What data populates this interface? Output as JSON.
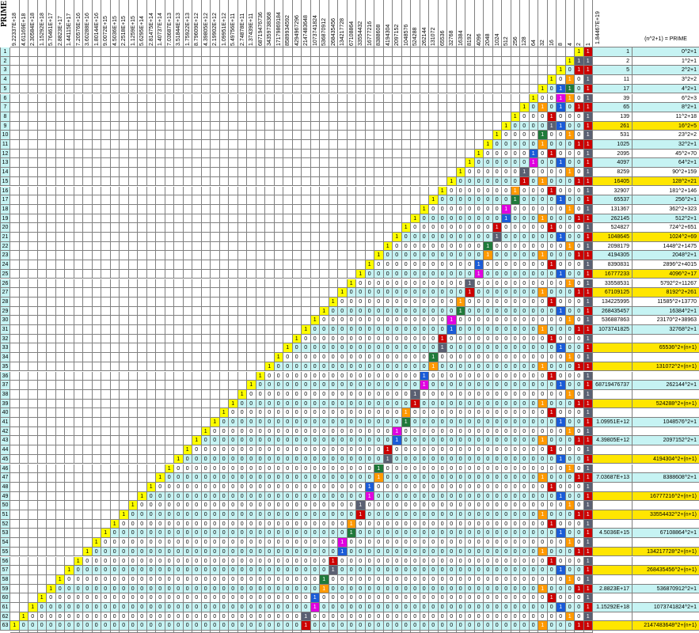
{
  "sheet": {
    "header_label": "PRIME",
    "col_header_label": "(n^2+1) = PRIME",
    "top_right_value": "1.84467E+19",
    "colors": {
      "grid_line": "#808080",
      "cyan_bg": "#c6f3f3",
      "light_bg": "#ffffff",
      "yellow": "#ffff00",
      "red": "#cc0000",
      "blue": "#1a5cd8",
      "green": "#1f7a3a",
      "magenta": "#e000e0",
      "orange": "#ff9900",
      "gray": "#5a6072",
      "highlight": "#ffe600"
    },
    "power_headers": [
      "9.22337E+18",
      "4.61169E+18",
      "2.30584E+18",
      "1.15292E+18",
      "5.76461E+17",
      "2.8823E+17",
      "1.44115E+17",
      "7.20576E+16",
      "3.60288E+16",
      "1.80144E+16",
      "9.0072E+15",
      "4.5036E+15",
      "2.2518E+15",
      "1.1259E+15",
      "5.6295E+14",
      "2.81475E+14",
      "1.40737E+14",
      "7.03687E+13",
      "3.51844E+13",
      "1.75922E+13",
      "8.79609E+12",
      "4.39805E+12",
      "2.19902E+12",
      "1.09951E+12",
      "5.49756E+11",
      "2.74878E+11",
      "1.37439E+11",
      "68719476736",
      "34359738368",
      "17179869184",
      "8589934592",
      "4294967296",
      "2147483648",
      "1073741824",
      "536870912",
      "268435456",
      "134217728",
      "67108864",
      "33554432",
      "16777216",
      "8388608",
      "4194304",
      "2097152",
      "1048576",
      "524288",
      "262144",
      "131072",
      "65536",
      "32768",
      "16384",
      "8192",
      "4096",
      "2048",
      "1024",
      "512",
      "256",
      "128",
      "64",
      "32",
      "16",
      "8",
      "4",
      "2",
      "1"
    ],
    "bottom_numbers": [
      "64",
      "63",
      "62",
      "61",
      "60",
      "59",
      "58",
      "57",
      "56",
      "55",
      "54",
      "53",
      "52",
      "51",
      "50",
      "49",
      "48",
      "47",
      "46",
      "45",
      "44",
      "43",
      "42",
      "41",
      "40",
      "39",
      "38",
      "37",
      "36",
      "35",
      "34",
      "33",
      "32",
      "31",
      "30",
      "29",
      "28",
      "27",
      "26",
      "25",
      "24",
      "23",
      "22",
      "21",
      "20",
      "19",
      "18",
      "17",
      "16",
      "15",
      "14",
      "13",
      "12",
      "11",
      "10",
      "9",
      "8",
      "7",
      "6",
      "5",
      "4",
      "3",
      "2",
      "1"
    ],
    "rows": [
      {
        "n": "1",
        "value": "1",
        "formula": "0^2+1",
        "hl": false
      },
      {
        "n": "2",
        "value": "2",
        "formula": "1^2+1",
        "hl": false
      },
      {
        "n": "3",
        "value": "5",
        "formula": "2^2+1",
        "hl": false
      },
      {
        "n": "4",
        "value": "11",
        "formula": "3^2+2",
        "hl": false
      },
      {
        "n": "5",
        "value": "17",
        "formula": "4^2+1",
        "hl": false
      },
      {
        "n": "6",
        "value": "39",
        "formula": "6^2+3",
        "hl": false
      },
      {
        "n": "7",
        "value": "65",
        "formula": "8^2+1",
        "hl": false
      },
      {
        "n": "8",
        "value": "139",
        "formula": "11^2+18",
        "hl": false
      },
      {
        "n": "9",
        "value": "261",
        "formula": "16^2+5",
        "hl": true
      },
      {
        "n": "10",
        "value": "531",
        "formula": "23^2+2",
        "hl": false
      },
      {
        "n": "11",
        "value": "1025",
        "formula": "32^2+1",
        "hl": false
      },
      {
        "n": "12",
        "value": "2095",
        "formula": "45^2+70",
        "hl": false
      },
      {
        "n": "13",
        "value": "4097",
        "formula": "64^2+1",
        "hl": false
      },
      {
        "n": "14",
        "value": "8259",
        "formula": "90^2+159",
        "hl": false
      },
      {
        "n": "15",
        "value": "16405",
        "formula": "128^2+21",
        "hl": true
      },
      {
        "n": "16",
        "value": "32907",
        "formula": "181^2+146",
        "hl": false
      },
      {
        "n": "17",
        "value": "65537",
        "formula": "256^2+1",
        "hl": false
      },
      {
        "n": "18",
        "value": "131367",
        "formula": "362^2+323",
        "hl": false
      },
      {
        "n": "19",
        "value": "262145",
        "formula": "512^2+1",
        "hl": false
      },
      {
        "n": "20",
        "value": "524827",
        "formula": "724^2+651",
        "hl": false
      },
      {
        "n": "21",
        "value": "1048645",
        "formula": "1024^2+69",
        "hl": true
      },
      {
        "n": "22",
        "value": "2098179",
        "formula": "1448^2+1475",
        "hl": false
      },
      {
        "n": "23",
        "value": "4194305",
        "formula": "2048^2+1",
        "hl": false
      },
      {
        "n": "24",
        "value": "8390831",
        "formula": "2896^2+4015",
        "hl": false
      },
      {
        "n": "25",
        "value": "16777233",
        "formula": "4096^2+17",
        "hl": true
      },
      {
        "n": "26",
        "value": "33558531",
        "formula": "5792^2+11267",
        "hl": false
      },
      {
        "n": "27",
        "value": "67109125",
        "formula": "8192^2+261",
        "hl": true
      },
      {
        "n": "28",
        "value": "134225995",
        "formula": "11585^2+13770",
        "hl": false
      },
      {
        "n": "29",
        "value": "268435457",
        "formula": "16384^2+1",
        "hl": false
      },
      {
        "n": "30",
        "value": "536887863",
        "formula": "23170^2+38963",
        "hl": false
      },
      {
        "n": "31",
        "value": "1073741825",
        "formula": "32768^2+1",
        "hl": false
      },
      {
        "n": "32",
        "value": "",
        "formula": "",
        "hl": false
      },
      {
        "n": "33",
        "value": "",
        "formula": "65536^2+(n+1)",
        "hl": true
      },
      {
        "n": "34",
        "value": "",
        "formula": "",
        "hl": false
      },
      {
        "n": "35",
        "value": "",
        "formula": "131072^2+(n+1)",
        "hl": true
      },
      {
        "n": "36",
        "value": "",
        "formula": "",
        "hl": false
      },
      {
        "n": "37",
        "value": "68719476737",
        "formula": "262144^2+1",
        "hl": false
      },
      {
        "n": "38",
        "value": "",
        "formula": "",
        "hl": false
      },
      {
        "n": "39",
        "value": "",
        "formula": "524288^2+(n+1)",
        "hl": true
      },
      {
        "n": "40",
        "value": "",
        "formula": "",
        "hl": false
      },
      {
        "n": "41",
        "value": "1.09951E+12",
        "formula": "1048576^2+1",
        "hl": false
      },
      {
        "n": "42",
        "value": "",
        "formula": "",
        "hl": false
      },
      {
        "n": "43",
        "value": "4.39805E+12",
        "formula": "2097152^2+1",
        "hl": false
      },
      {
        "n": "44",
        "value": "",
        "formula": "",
        "hl": false
      },
      {
        "n": "45",
        "value": "",
        "formula": "4194304^2+(n+1)",
        "hl": true
      },
      {
        "n": "46",
        "value": "",
        "formula": "",
        "hl": false
      },
      {
        "n": "47",
        "value": "7.03687E+13",
        "formula": "8388608^2+1",
        "hl": false
      },
      {
        "n": "48",
        "value": "",
        "formula": "",
        "hl": false
      },
      {
        "n": "49",
        "value": "",
        "formula": "16777216^2+(n+1)",
        "hl": true
      },
      {
        "n": "50",
        "value": "",
        "formula": "",
        "hl": false
      },
      {
        "n": "51",
        "value": "",
        "formula": "33554432^2+(n+1)",
        "hl": true
      },
      {
        "n": "52",
        "value": "",
        "formula": "",
        "hl": false
      },
      {
        "n": "53",
        "value": "4.5036E+15",
        "formula": "67108864^2+1",
        "hl": false
      },
      {
        "n": "54",
        "value": "",
        "formula": "",
        "hl": false
      },
      {
        "n": "55",
        "value": "",
        "formula": "134217728^2+(n+1)",
        "hl": true
      },
      {
        "n": "56",
        "value": "",
        "formula": "",
        "hl": false
      },
      {
        "n": "57",
        "value": "",
        "formula": "268435456^2+(n+1)",
        "hl": true
      },
      {
        "n": "58",
        "value": "",
        "formula": "",
        "hl": false
      },
      {
        "n": "59",
        "value": "2.8823E+17",
        "formula": "536870912^2+1",
        "hl": false
      },
      {
        "n": "60",
        "value": "",
        "formula": "",
        "hl": false
      },
      {
        "n": "61",
        "value": "1.15292E+18",
        "formula": "1073741824^2+1",
        "hl": false
      },
      {
        "n": "62",
        "value": "",
        "formula": "",
        "hl": false
      },
      {
        "n": "63",
        "value": "",
        "formula": "2147483648^2+(n+1)",
        "hl": true
      }
    ]
  }
}
